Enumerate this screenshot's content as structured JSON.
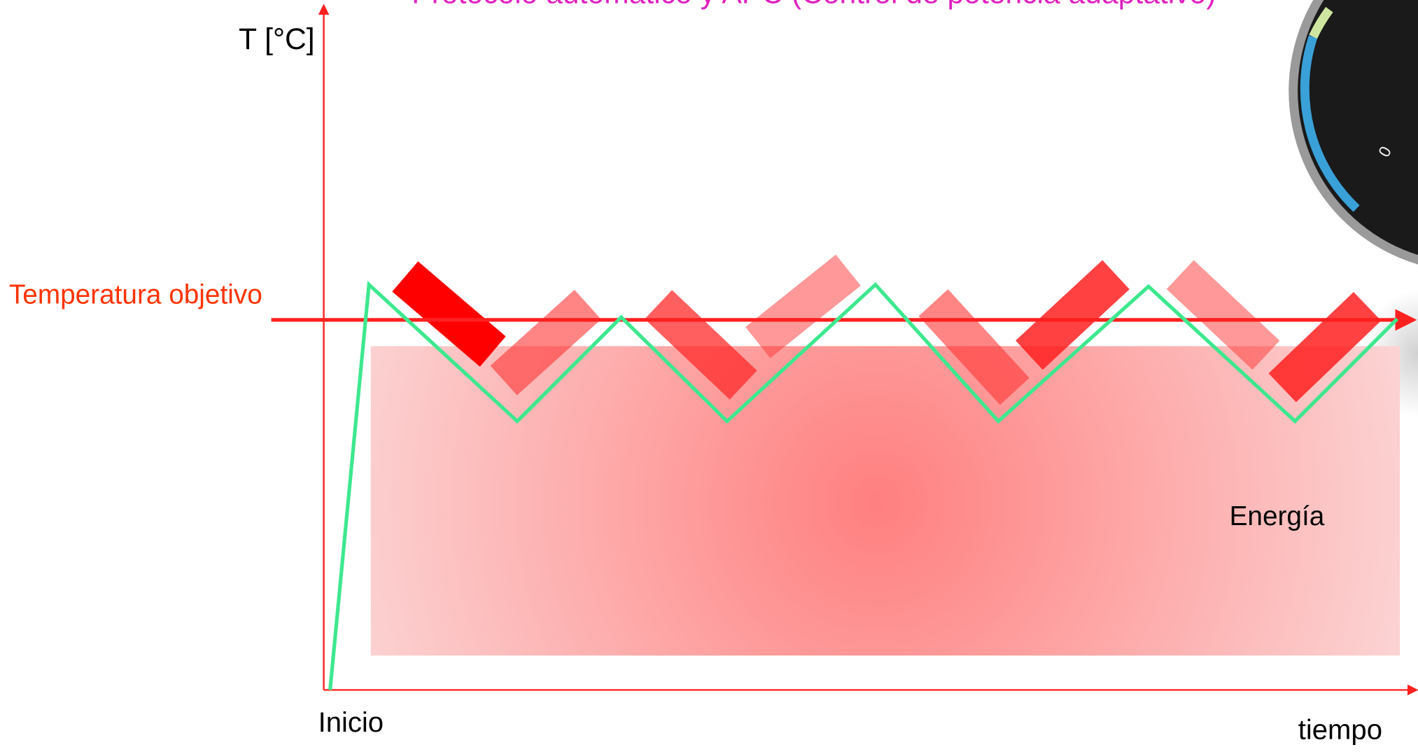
{
  "title": "Protocolo automático y APC (Control de potencia adaptativo)",
  "y_axis_label": "T [°C]",
  "target_label": "Temperatura objetivo",
  "energy_label": "Energía",
  "start_label": "Inicio",
  "x_axis_label": "tiempo",
  "gauge_label": "0"
}
